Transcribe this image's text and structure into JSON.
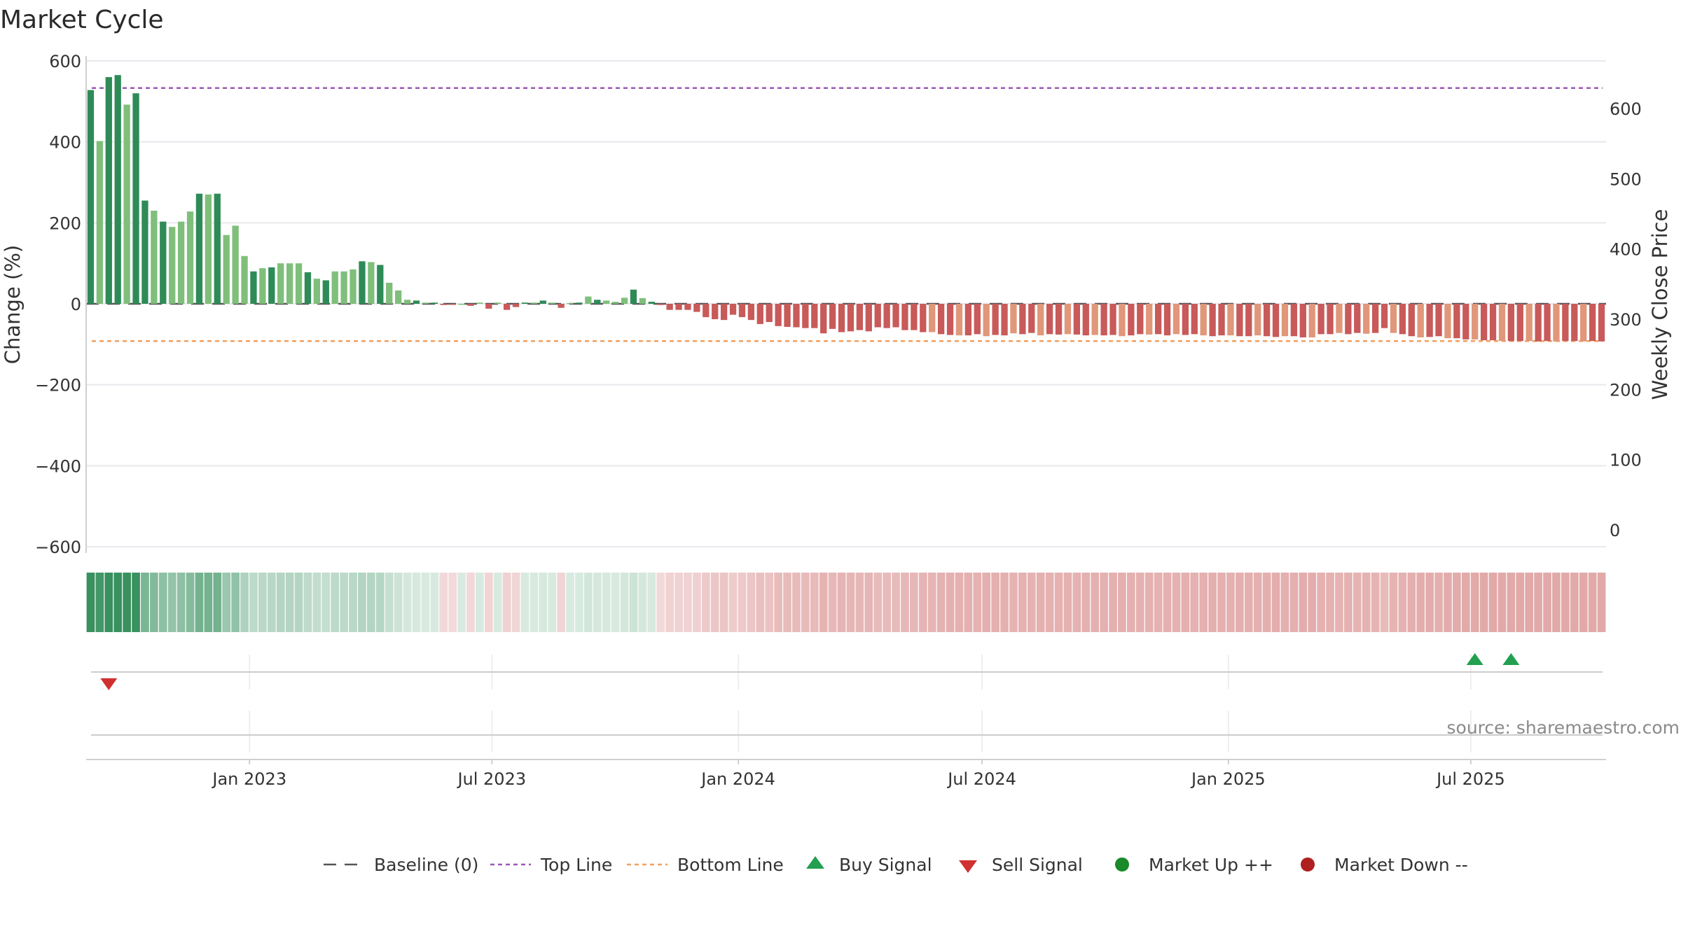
{
  "chart_data": {
    "type": "bar",
    "title": "Market Cycle",
    "ylabel": "Change (%)",
    "y2label": "Weekly Close Price",
    "ylim": [
      -600,
      600
    ],
    "y_ticks": [
      600,
      400,
      200,
      0,
      -200,
      -400,
      -600
    ],
    "y2lim": [
      0,
      650
    ],
    "y2_ticks": [
      600,
      500,
      400,
      300,
      200,
      100,
      0
    ],
    "top_line": 533,
    "bottom_line": -92,
    "baseline": 0,
    "x_start": "2022-09-01",
    "x_end": "2025-10-10",
    "x_ticks": [
      {
        "label": "Jan 2023",
        "date": "2023-01-01"
      },
      {
        "label": "Jul 2023",
        "date": "2023-07-01"
      },
      {
        "label": "Jan 2024",
        "date": "2024-01-01"
      },
      {
        "label": "Jul 2024",
        "date": "2024-07-01"
      },
      {
        "label": "Jan 2025",
        "date": "2025-01-01"
      },
      {
        "label": "Jul 2025",
        "date": "2025-07-01"
      }
    ],
    "weekly_change": [
      528,
      402,
      560,
      565,
      492,
      520,
      255,
      230,
      203,
      190,
      203,
      228,
      272,
      270,
      272,
      170,
      193,
      118,
      80,
      88,
      90,
      100,
      100,
      100,
      78,
      62,
      58,
      80,
      80,
      85,
      105,
      103,
      96,
      52,
      33,
      10,
      8,
      3,
      3,
      -3,
      -1,
      0,
      -5,
      3,
      -12,
      3,
      -15,
      -8,
      3,
      3,
      8,
      3,
      -10,
      2,
      3,
      18,
      10,
      8,
      5,
      15,
      35,
      14,
      5,
      -3,
      -15,
      -15,
      -15,
      -20,
      -33,
      -38,
      -40,
      -27,
      -33,
      -40,
      -50,
      -45,
      -55,
      -57,
      -58,
      -60,
      -60,
      -73,
      -62,
      -70,
      -68,
      -65,
      -68,
      -58,
      -60,
      -58,
      -65,
      -65,
      -70,
      -70,
      -75,
      -77,
      -78,
      -78,
      -75,
      -80,
      -77,
      -78,
      -73,
      -75,
      -72,
      -78,
      -75,
      -76,
      -75,
      -76,
      -78,
      -77,
      -78,
      -77,
      -80,
      -78,
      -75,
      -76,
      -75,
      -78,
      -75,
      -77,
      -75,
      -78,
      -80,
      -78,
      -78,
      -80,
      -80,
      -78,
      -80,
      -82,
      -80,
      -80,
      -83,
      -83,
      -75,
      -75,
      -72,
      -75,
      -72,
      -74,
      -72,
      -60,
      -72,
      -75,
      -80,
      -83,
      -82,
      -80,
      -85,
      -85,
      -88,
      -88,
      -90,
      -90,
      -92,
      -92,
      -92,
      -92,
      -93,
      -92,
      -93,
      -92,
      -92,
      -93,
      -92,
      -93
    ],
    "signals": [
      {
        "type": "sell",
        "week": 2
      },
      {
        "type": "buy",
        "week": 153
      },
      {
        "type": "buy",
        "week": 157
      }
    ],
    "legend": [
      {
        "key": "baseline",
        "label": "Baseline (0)"
      },
      {
        "key": "top",
        "label": "Top Line"
      },
      {
        "key": "bottom",
        "label": "Bottom Line"
      },
      {
        "key": "buy",
        "label": "Buy Signal"
      },
      {
        "key": "sell",
        "label": "Sell Signal"
      },
      {
        "key": "up",
        "label": "Market Up ++"
      },
      {
        "key": "down",
        "label": "Market Down --"
      }
    ],
    "source": "source: sharemaestro.com"
  },
  "colors": {
    "up_strong": "#2e8b57",
    "up_light": "#7fbf7b",
    "down_strong": "#c85a5a",
    "down_light": "#e0977a",
    "top_line": "#9b59b6",
    "bottom_line": "#f0a060",
    "baseline": "#555555",
    "buy": "#22a050",
    "sell": "#d03030",
    "market_up": "#1a8a2a",
    "market_down": "#b02020",
    "grid": "#e8e8ee",
    "axis": "#cfcfcf"
  }
}
